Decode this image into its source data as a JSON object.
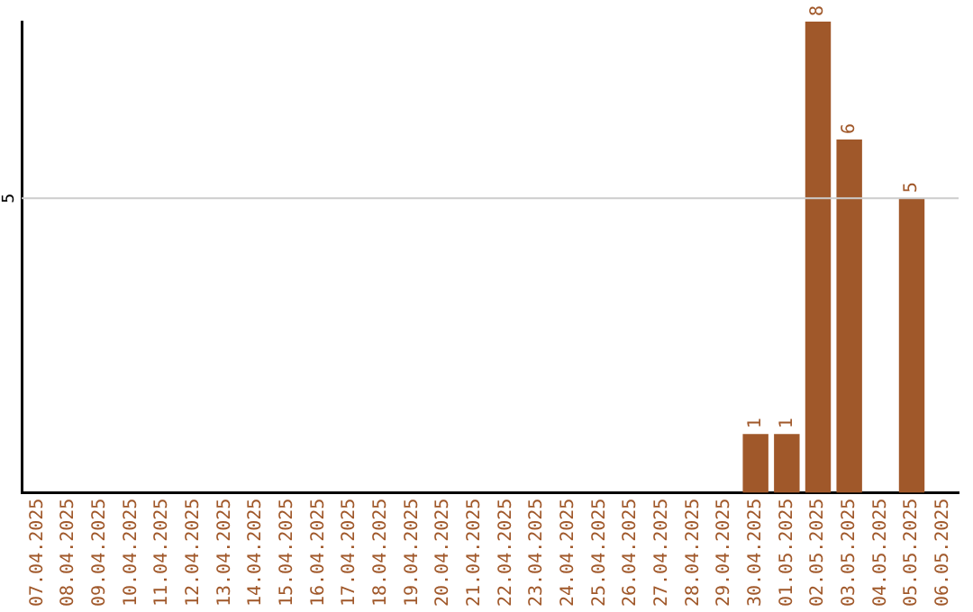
{
  "chart_data": {
    "type": "bar",
    "categories": [
      "07.04.2025",
      "08.04.2025",
      "09.04.2025",
      "10.04.2025",
      "11.04.2025",
      "12.04.2025",
      "13.04.2025",
      "14.04.2025",
      "15.04.2025",
      "16.04.2025",
      "17.04.2025",
      "18.04.2025",
      "19.04.2025",
      "20.04.2025",
      "21.04.2025",
      "22.04.2025",
      "23.04.2025",
      "24.04.2025",
      "25.04.2025",
      "26.04.2025",
      "27.04.2025",
      "28.04.2025",
      "29.04.2025",
      "30.04.2025",
      "01.05.2025",
      "02.05.2025",
      "03.05.2025",
      "04.05.2025",
      "05.05.2025",
      "06.05.2025"
    ],
    "values": [
      null,
      null,
      null,
      null,
      null,
      null,
      null,
      null,
      null,
      null,
      null,
      null,
      null,
      null,
      null,
      null,
      null,
      null,
      null,
      null,
      null,
      null,
      null,
      1,
      1,
      8,
      6,
      null,
      5,
      null
    ],
    "data_labels": true,
    "color": "#a0582a",
    "ylim": [
      0,
      8
    ],
    "ref_lines": [
      {
        "axis": "y",
        "value": 5,
        "label": "5",
        "color": "#cccccc"
      }
    ],
    "legend": false
  }
}
